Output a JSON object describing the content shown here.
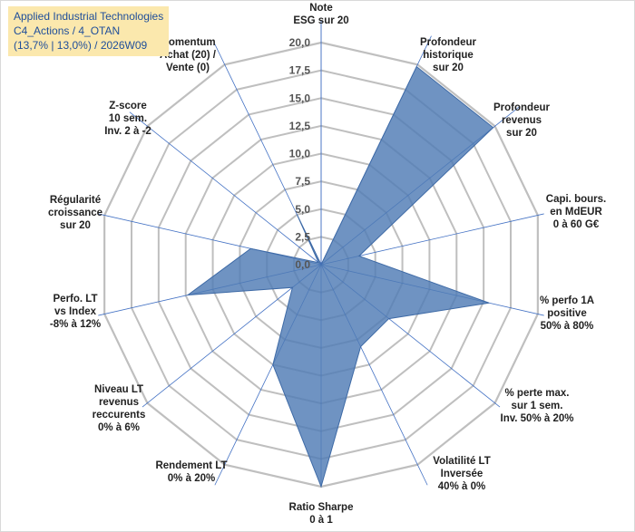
{
  "chart_data": {
    "type": "radar",
    "title_lines": [
      "Applied Industrial Technologies",
      "C4_Actions / 4_OTAN",
      "(13,7% | 13,0%) / 2026W09"
    ],
    "range": [
      0,
      20
    ],
    "ticks": [
      "0,0",
      "2,5",
      "5,0",
      "7,5",
      "10,0",
      "12,5",
      "15,0",
      "17,5",
      "20,0"
    ],
    "axes": [
      {
        "label": [
          "Note",
          "ESG sur 20"
        ],
        "value": 0
      },
      {
        "label": [
          "Profondeur",
          "historique",
          "sur 20"
        ],
        "value": 19.8
      },
      {
        "label": [
          "Profondeur",
          "revenus",
          "sur 20"
        ],
        "value": 19.8
      },
      {
        "label": [
          "Capi. bours.",
          "en MdEUR",
          "0 à 60 G€"
        ],
        "value": 3.5
      },
      {
        "label": [
          "% perfo 1A",
          "positive",
          "50% à 80%"
        ],
        "value": 15.5
      },
      {
        "label": [
          "% perte max.",
          "sur 1 sem.",
          "Inv. 50% à 20%"
        ],
        "value": 7.8
      },
      {
        "label": [
          "Volatilité LT",
          "Inversée",
          "40% à 0%"
        ],
        "value": 8.2
      },
      {
        "label": [
          "Ratio Sharpe",
          "0 à 1"
        ],
        "value": 20.0
      },
      {
        "label": [
          "Rendement LT",
          "0% à 20%"
        ],
        "value": 10.0
      },
      {
        "label": [
          "Niveau LT",
          "revenus",
          "reccurents",
          "0% à 6%"
        ],
        "value": 3.3
      },
      {
        "label": [
          "Perfo. LT",
          "vs Index",
          "-8% à 12%"
        ],
        "value": 12.3
      },
      {
        "label": [
          "Régularité",
          "croissance",
          "sur 20"
        ],
        "value": 6.5
      },
      {
        "label": [
          "Z-score",
          "10 sem.",
          "Inv. 2 à -2"
        ],
        "value": 0.3
      },
      {
        "label": [
          "Momentum",
          "Achat (20) /",
          "Vente (0)"
        ],
        "value": 5.0
      }
    ],
    "colors": {
      "fill": "#4f7bb5",
      "fill_opacity": 0.82,
      "stroke": "#3e6aa6",
      "grid": "#bfbfbf",
      "spoke": "#4472c4"
    }
  }
}
